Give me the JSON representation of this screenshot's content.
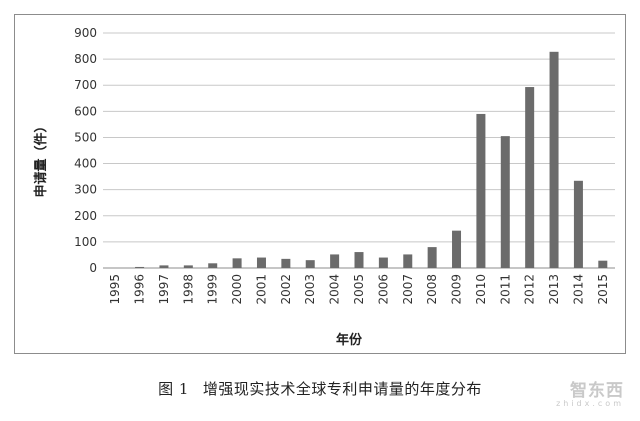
{
  "chart_data": {
    "type": "bar",
    "categories": [
      "1995",
      "1996",
      "1997",
      "1998",
      "1999",
      "2000",
      "2001",
      "2002",
      "2003",
      "2004",
      "2005",
      "2006",
      "2007",
      "2008",
      "2009",
      "2010",
      "2011",
      "2012",
      "2013",
      "2014",
      "2015"
    ],
    "series": [
      {
        "values": [
          0,
          4,
          10,
          10,
          18,
          37,
          40,
          35,
          30,
          52,
          61,
          40,
          52,
          80,
          143,
          590,
          505,
          693,
          828,
          334,
          28
        ]
      }
    ],
    "xlabel": "年份",
    "ylabel": "申请量（件）",
    "ylim": [
      0,
      900
    ],
    "yticks": [
      0,
      100,
      200,
      300,
      400,
      500,
      600,
      700,
      800,
      900
    ],
    "grid": "horizontal",
    "bar_color": "#6b6b6b",
    "grid_color": "#c8c8c8"
  },
  "caption": {
    "label": "图 1",
    "text": "增强现实技术全球专利申请量的年度分布"
  },
  "watermark": {
    "main": "智东西",
    "sub": "zhidx.com"
  }
}
